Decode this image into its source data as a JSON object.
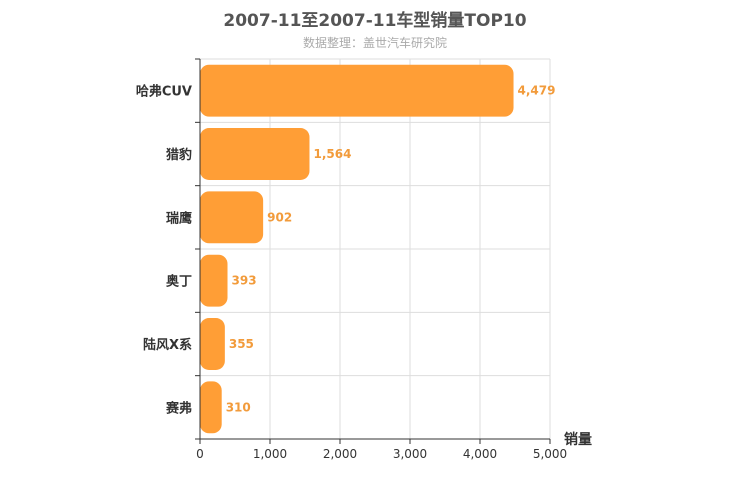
{
  "chart_data": {
    "type": "bar",
    "orientation": "horizontal",
    "title": "2007-11至2007-11车型销量TOP10",
    "subtitle": "数据整理：盖世汽车研究院",
    "categories": [
      "哈弗CUV",
      "猎豹",
      "瑞鹰",
      "奥丁",
      "陆风X系",
      "赛弗"
    ],
    "values": [
      4479,
      1564,
      902,
      393,
      355,
      310
    ],
    "value_labels": [
      "4,479",
      "1,564",
      "902",
      "393",
      "355",
      "310"
    ],
    "xlabel": "销量",
    "ylabel": "",
    "xlim": [
      0,
      5000
    ],
    "x_ticks": [
      0,
      1000,
      2000,
      3000,
      4000,
      5000
    ],
    "x_tick_labels": [
      "0",
      "1,000",
      "2,000",
      "3,000",
      "4,000",
      "5,000"
    ],
    "grid": true,
    "bar_color": "#ff9e36",
    "label_color": "#f29b3b"
  }
}
